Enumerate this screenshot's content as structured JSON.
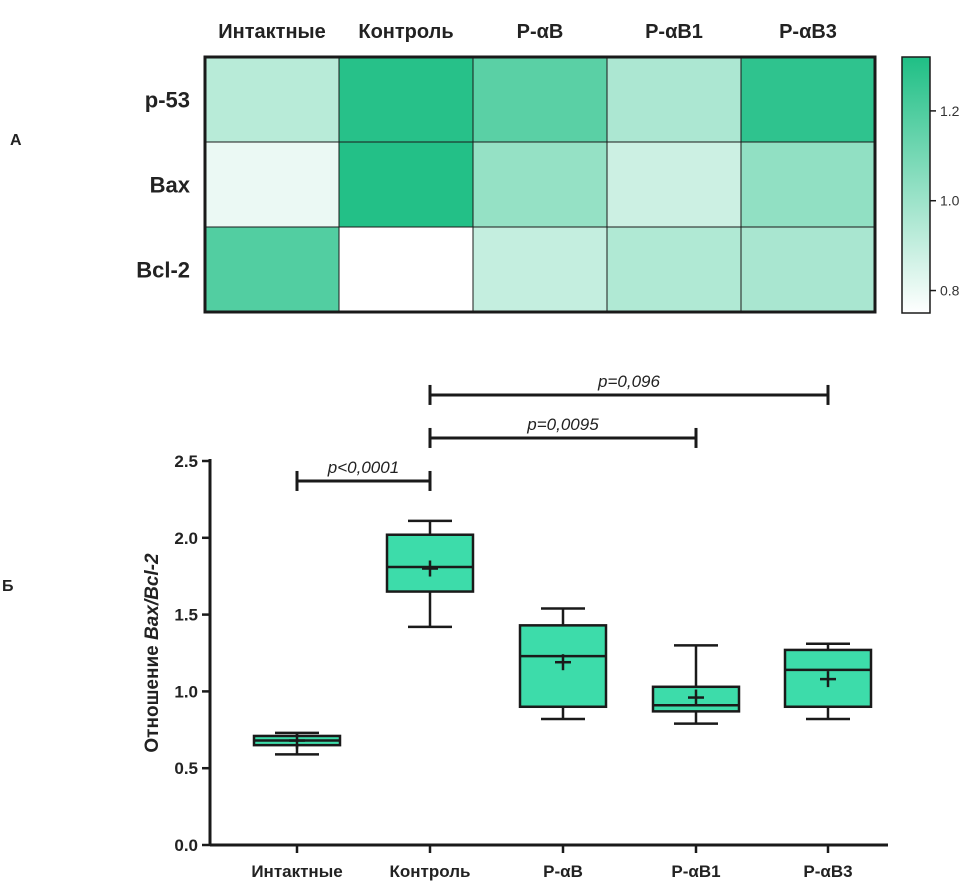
{
  "panel_labels": {
    "a": "А",
    "b": "Б"
  },
  "colors": {
    "accent": "#1fbf85",
    "box_fill": "#3ddcaa",
    "line": "#1a1a1a",
    "low": "#ffffff"
  },
  "chart_data": [
    {
      "type": "heatmap",
      "columns": [
        "Интактные",
        "Контроль",
        "Р-αВ",
        "Р-αВ1",
        "Р-αВ3"
      ],
      "rows": [
        "р-53",
        "Bax",
        "Bcl-2"
      ],
      "values": [
        [
          0.93,
          1.3,
          1.17,
          0.96,
          1.28
        ],
        [
          0.8,
          1.31,
          1.02,
          0.88,
          1.03
        ],
        [
          1.19,
          0.75,
          0.9,
          0.95,
          0.97
        ]
      ],
      "colorbar": {
        "min": 0.75,
        "max": 1.32,
        "ticks": [
          0.8,
          1.0,
          1.2
        ],
        "tick_labels": [
          "0.8",
          "1.0",
          "1.2"
        ]
      }
    },
    {
      "type": "box",
      "categories": [
        "Интактные",
        "Контроль",
        "Р-αВ",
        "Р-αВ1",
        "Р-αВ3"
      ],
      "ylabel_prefix": "Отношение ",
      "ylabel_italic": "Bax/Bcl-2",
      "ylim": [
        0,
        2.5
      ],
      "yticks": [
        0.0,
        0.5,
        1.0,
        1.5,
        2.0,
        2.5
      ],
      "ytick_labels": [
        "0.0",
        "0.5",
        "1.0",
        "1.5",
        "2.0",
        "2.5"
      ],
      "boxes": [
        {
          "min": 0.59,
          "q1": 0.65,
          "median": 0.68,
          "q3": 0.71,
          "max": 0.73,
          "mean": 0.68
        },
        {
          "min": 1.42,
          "q1": 1.65,
          "median": 1.81,
          "q3": 2.02,
          "max": 2.11,
          "mean": 1.8
        },
        {
          "min": 0.82,
          "q1": 0.9,
          "median": 1.23,
          "q3": 1.43,
          "max": 1.54,
          "mean": 1.19
        },
        {
          "min": 0.79,
          "q1": 0.87,
          "median": 0.91,
          "q3": 1.03,
          "max": 1.3,
          "mean": 0.96
        },
        {
          "min": 0.82,
          "q1": 0.9,
          "median": 1.14,
          "q3": 1.27,
          "max": 1.31,
          "mean": 1.08
        }
      ],
      "comparisons": [
        {
          "from": 0,
          "to": 1,
          "y": 2.37,
          "label": "p<0,0001"
        },
        {
          "from": 1,
          "to": 3,
          "y": 2.65,
          "label": "p=0,0095"
        },
        {
          "from": 1,
          "to": 4,
          "y": 2.93,
          "label": "p=0,096"
        }
      ]
    }
  ]
}
